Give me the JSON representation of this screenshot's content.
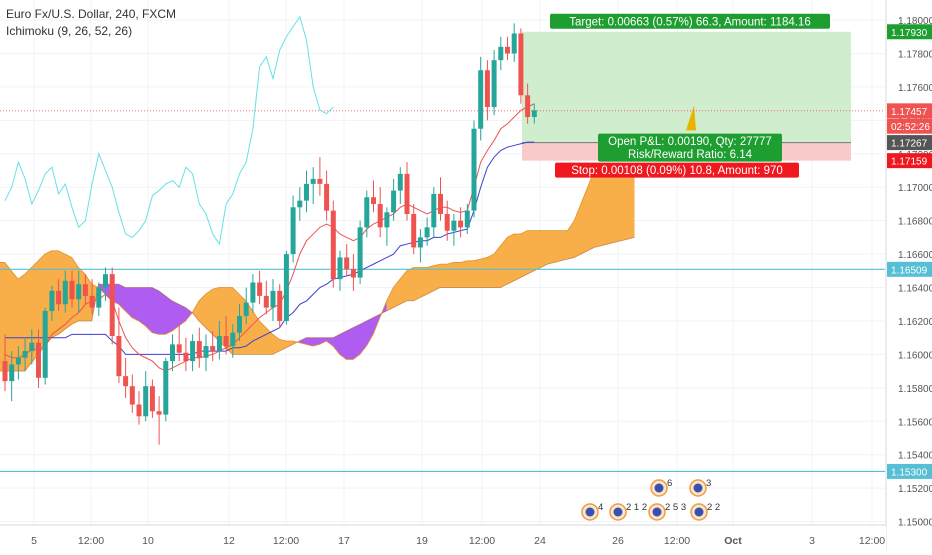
{
  "legend": {
    "symbol_line": "Euro Fx/U.S. Dollar, 240, FXCM",
    "indicator_line": "Ichimoku (9, 26, 52, 26)"
  },
  "colors": {
    "up": "#26a69a",
    "down": "#ef5350",
    "tenkan": "#ef5350",
    "kijun": "#3f3fd1",
    "chikou": "#66e0e8",
    "cloud_bull": "#f7a535",
    "cloud_bear": "#a64af0",
    "hline": "#56bfd6",
    "target_fill": "#c8ebc4",
    "stop_fill": "#f9c4c4",
    "target_label": "#1e9e30",
    "stop_label": "#f0181f"
  },
  "chart_data": {
    "type": "candlestick",
    "instrument": "Euro Fx/U.S. Dollar",
    "timeframe": "240",
    "source": "FXCM",
    "indicator": "Ichimoku (9, 26, 52, 26)",
    "ylim": [
      1.1483,
      1.1812
    ],
    "y_ticks": [
      "1.18000",
      "1.17800",
      "1.17600",
      "1.17400",
      "1.17200",
      "1.17000",
      "1.16800",
      "1.16600",
      "1.16400",
      "1.16200",
      "1.16000",
      "1.15800",
      "1.15600",
      "1.15400",
      "1.15200",
      "1.15000"
    ],
    "x_ticks": [
      "5",
      "12:00",
      "10",
      "12",
      "12:00",
      "17",
      "19",
      "12:00",
      "24",
      "26",
      "12:00",
      "Oct",
      "3",
      "12:00"
    ],
    "price_labels": [
      {
        "text": "1.17930",
        "value": 1.1793,
        "style": "target"
      },
      {
        "text": "1.17457",
        "value": 1.17457,
        "style": "last"
      },
      {
        "text": "02:52:26",
        "value": 1.17365,
        "style": "timer"
      },
      {
        "text": "1.17267",
        "value": 1.17267,
        "style": "entry"
      },
      {
        "text": "1.17159",
        "value": 1.17159,
        "style": "stop"
      },
      {
        "text": "1.16509",
        "value": 1.16509,
        "style": "level"
      },
      {
        "text": "1.15300",
        "value": 1.153,
        "style": "level"
      }
    ],
    "horizontal_levels": [
      1.16509,
      1.153
    ],
    "last_price": 1.17457,
    "position": {
      "entry": 1.17267,
      "target": 1.1793,
      "stop": 1.17159,
      "target_label": "Target: 0.00663 (0.57%) 66.3, Amount: 1184.16",
      "pnl_label": "Open P&L: 0.00190, Qty: 27777",
      "rr_label": "Risk/Reward Ratio: 6.14",
      "stop_label": "Stop: 0.00108 (0.09%) 10.8, Amount: 970"
    },
    "event_markers": [
      {
        "count": "4",
        "x_label": "24"
      },
      {
        "count": "2 1 2",
        "x_label": "26"
      },
      {
        "count": "6",
        "x_label": "26"
      },
      {
        "count": "2 5 3",
        "x_label": "26"
      },
      {
        "count": "3",
        "x_label": "12:00"
      },
      {
        "count": "2 2",
        "x_label": "12:00"
      }
    ],
    "candles": [
      [
        1.1596,
        1.1612,
        1.1578,
        1.1584
      ],
      [
        1.1584,
        1.1602,
        1.1572,
        1.1594
      ],
      [
        1.1594,
        1.1605,
        1.1585,
        1.1598
      ],
      [
        1.1598,
        1.161,
        1.159,
        1.1602
      ],
      [
        1.1602,
        1.1615,
        1.1594,
        1.1607
      ],
      [
        1.1607,
        1.1615,
        1.158,
        1.1586
      ],
      [
        1.1586,
        1.1628,
        1.1582,
        1.1626
      ],
      [
        1.1626,
        1.1641,
        1.162,
        1.1638
      ],
      [
        1.1638,
        1.1645,
        1.1626,
        1.163
      ],
      [
        1.163,
        1.165,
        1.1625,
        1.1644
      ],
      [
        1.1644,
        1.165,
        1.1628,
        1.1633
      ],
      [
        1.1633,
        1.165,
        1.1625,
        1.1642
      ],
      [
        1.1642,
        1.1648,
        1.163,
        1.1635
      ],
      [
        1.1635,
        1.1645,
        1.1624,
        1.1628
      ],
      [
        1.1628,
        1.1643,
        1.1623,
        1.164
      ],
      [
        1.164,
        1.1652,
        1.1632,
        1.1648
      ],
      [
        1.1648,
        1.1652,
        1.1606,
        1.1611
      ],
      [
        1.1611,
        1.1628,
        1.1583,
        1.1587
      ],
      [
        1.1587,
        1.1598,
        1.1574,
        1.1581
      ],
      [
        1.1581,
        1.1588,
        1.1565,
        1.157
      ],
      [
        1.157,
        1.1578,
        1.1558,
        1.1563
      ],
      [
        1.1563,
        1.159,
        1.156,
        1.1581
      ],
      [
        1.1581,
        1.1585,
        1.1562,
        1.1566
      ],
      [
        1.1566,
        1.1575,
        1.1546,
        1.1564
      ],
      [
        1.1564,
        1.1598,
        1.156,
        1.1596
      ],
      [
        1.1596,
        1.1612,
        1.159,
        1.1606
      ],
      [
        1.1606,
        1.1618,
        1.1596,
        1.1601
      ],
      [
        1.1601,
        1.161,
        1.159,
        1.1596
      ],
      [
        1.1596,
        1.1612,
        1.159,
        1.1608
      ],
      [
        1.1608,
        1.1616,
        1.1592,
        1.1598
      ],
      [
        1.1598,
        1.1612,
        1.159,
        1.1605
      ],
      [
        1.1605,
        1.1614,
        1.1596,
        1.1602
      ],
      [
        1.1602,
        1.162,
        1.1597,
        1.1611
      ],
      [
        1.1611,
        1.1623,
        1.16,
        1.1605
      ],
      [
        1.1605,
        1.1618,
        1.1598,
        1.1613
      ],
      [
        1.1613,
        1.163,
        1.1608,
        1.1623
      ],
      [
        1.1623,
        1.164,
        1.1618,
        1.1631
      ],
      [
        1.1631,
        1.1648,
        1.1625,
        1.1643
      ],
      [
        1.1643,
        1.165,
        1.163,
        1.1635
      ],
      [
        1.1635,
        1.1644,
        1.1624,
        1.1628
      ],
      [
        1.1628,
        1.1645,
        1.162,
        1.1638
      ],
      [
        1.1638,
        1.1642,
        1.1616,
        1.162
      ],
      [
        1.162,
        1.1662,
        1.1618,
        1.166
      ],
      [
        1.166,
        1.1695,
        1.1655,
        1.1688
      ],
      [
        1.1688,
        1.17,
        1.168,
        1.1692
      ],
      [
        1.1692,
        1.171,
        1.1685,
        1.1702
      ],
      [
        1.1702,
        1.1712,
        1.169,
        1.1705
      ],
      [
        1.1705,
        1.1718,
        1.1695,
        1.1702
      ],
      [
        1.1702,
        1.171,
        1.168,
        1.1686
      ],
      [
        1.1686,
        1.1692,
        1.164,
        1.1645
      ],
      [
        1.1645,
        1.1662,
        1.1638,
        1.1658
      ],
      [
        1.1658,
        1.1666,
        1.1647,
        1.1651
      ],
      [
        1.1651,
        1.166,
        1.1638,
        1.1646
      ],
      [
        1.1646,
        1.168,
        1.1642,
        1.1676
      ],
      [
        1.1676,
        1.1698,
        1.167,
        1.1694
      ],
      [
        1.1694,
        1.1704,
        1.1685,
        1.169
      ],
      [
        1.169,
        1.17,
        1.167,
        1.1676
      ],
      [
        1.1676,
        1.1688,
        1.1665,
        1.1685
      ],
      [
        1.1685,
        1.1705,
        1.168,
        1.1698
      ],
      [
        1.1698,
        1.1712,
        1.169,
        1.1708
      ],
      [
        1.1708,
        1.1715,
        1.168,
        1.1684
      ],
      [
        1.1684,
        1.169,
        1.166,
        1.1664
      ],
      [
        1.1664,
        1.1675,
        1.1655,
        1.167
      ],
      [
        1.167,
        1.1682,
        1.1665,
        1.1676
      ],
      [
        1.1676,
        1.17,
        1.167,
        1.1696
      ],
      [
        1.1696,
        1.1706,
        1.168,
        1.1684
      ],
      [
        1.1684,
        1.1692,
        1.1668,
        1.1674
      ],
      [
        1.1674,
        1.1684,
        1.1665,
        1.168
      ],
      [
        1.168,
        1.1688,
        1.167,
        1.1676
      ],
      [
        1.1676,
        1.169,
        1.1672,
        1.1686
      ],
      [
        1.1686,
        1.174,
        1.1682,
        1.1735
      ],
      [
        1.1735,
        1.1778,
        1.1728,
        1.177
      ],
      [
        1.177,
        1.1776,
        1.174,
        1.1748
      ],
      [
        1.1748,
        1.1782,
        1.1743,
        1.1776
      ],
      [
        1.1776,
        1.179,
        1.177,
        1.1784
      ],
      [
        1.1784,
        1.179,
        1.1776,
        1.178
      ],
      [
        1.178,
        1.1798,
        1.1775,
        1.1792
      ],
      [
        1.1792,
        1.1795,
        1.175,
        1.1755
      ],
      [
        1.1755,
        1.1762,
        1.1738,
        1.1742
      ],
      [
        1.1742,
        1.175,
        1.1738,
        1.1746
      ]
    ],
    "tenkan": [
      1.16,
      1.1598,
      1.1598,
      1.16,
      1.1603,
      1.1603,
      1.1605,
      1.1612,
      1.1615,
      1.1618,
      1.1622,
      1.1625,
      1.163,
      1.1632,
      1.1633,
      1.1636,
      1.1632,
      1.162,
      1.161,
      1.1604,
      1.16,
      1.1598,
      1.1596,
      1.1592,
      1.159,
      1.1592,
      1.1594,
      1.1596,
      1.1598,
      1.1598,
      1.1599,
      1.16,
      1.1602,
      1.1604,
      1.1606,
      1.161,
      1.1614,
      1.1618,
      1.1622,
      1.1625,
      1.1628,
      1.163,
      1.1638,
      1.1648,
      1.166,
      1.1668,
      1.1672,
      1.1676,
      1.1678,
      1.1676,
      1.1672,
      1.167,
      1.1668,
      1.167,
      1.1675,
      1.1678,
      1.168,
      1.1682,
      1.1684,
      1.1688,
      1.169,
      1.1688,
      1.1686,
      1.1684,
      1.1686,
      1.1688,
      1.1688,
      1.1686,
      1.1685,
      1.1686,
      1.17,
      1.1715,
      1.1722,
      1.1728,
      1.1735,
      1.1738,
      1.1742,
      1.1746,
      1.1748,
      1.175
    ],
    "kijun": [
      1.161,
      1.161,
      1.161,
      1.161,
      1.161,
      1.161,
      1.161,
      1.161,
      1.161,
      1.161,
      1.1612,
      1.1612,
      1.1612,
      1.1612,
      1.1612,
      1.1612,
      1.1608,
      1.1605,
      1.16,
      1.16,
      1.16,
      1.16,
      1.16,
      1.16,
      1.16,
      1.16,
      1.16,
      1.16,
      1.16,
      1.1602,
      1.1602,
      1.1602,
      1.1602,
      1.1602,
      1.1604,
      1.1604,
      1.1605,
      1.1608,
      1.161,
      1.1612,
      1.1614,
      1.1616,
      1.1622,
      1.1625,
      1.163,
      1.1632,
      1.1636,
      1.164,
      1.1642,
      1.1645,
      1.1646,
      1.1647,
      1.1648,
      1.165,
      1.1652,
      1.1654,
      1.1656,
      1.1658,
      1.166,
      1.1665,
      1.1666,
      1.1667,
      1.1668,
      1.1668,
      1.167,
      1.167,
      1.1672,
      1.1673,
      1.1674,
      1.1675,
      1.1686,
      1.17,
      1.1712,
      1.1718,
      1.1722,
      1.1724,
      1.1725,
      1.1726,
      1.1727,
      1.1727
    ],
    "chikou": [
      1.1692,
      1.17,
      1.1715,
      1.1705,
      1.169,
      1.1698,
      1.1708,
      1.1712,
      1.1696,
      1.1702,
      1.1688,
      1.1676,
      1.168,
      1.1702,
      1.172,
      1.171,
      1.17,
      1.1685,
      1.1672,
      1.167,
      1.1674,
      1.168,
      1.1695,
      1.1698,
      1.1702,
      1.1704,
      1.17,
      1.1712,
      1.1708,
      1.169,
      1.1684,
      1.1672,
      1.1666,
      1.169,
      1.1696,
      1.1708,
      1.1715,
      1.1735,
      1.1772,
      1.1778,
      1.1765,
      1.1782,
      1.179,
      1.1796,
      1.1802,
      1.1788,
      1.176,
      1.1746,
      1.1744,
      1.1748
    ],
    "span_a": [
      1.1655,
      1.1655,
      1.165,
      1.1645,
      1.1648,
      1.1652,
      1.1656,
      1.166,
      1.1662,
      1.1662,
      1.166,
      1.1658,
      1.1652,
      1.1648,
      1.1642,
      1.164,
      1.1636,
      1.1632,
      1.163,
      1.1626,
      1.1622,
      1.162,
      1.1617,
      1.1613,
      1.1612,
      1.1612,
      1.1614,
      1.1617,
      1.162,
      1.1625,
      1.1632,
      1.1636,
      1.1639,
      1.164,
      1.164,
      1.164,
      1.1636,
      1.1632,
      1.1626,
      1.162,
      1.1616,
      1.1612,
      1.1609,
      1.1608,
      1.1608,
      1.1607,
      1.1606,
      1.1605,
      1.1606,
      1.1608,
      1.1605,
      1.16,
      1.1597,
      1.1597,
      1.16,
      1.1605,
      1.1612,
      1.1622,
      1.1632,
      1.164,
      1.1645,
      1.165,
      1.1652,
      1.1652,
      1.1652,
      1.1653,
      1.1654,
      1.1654,
      1.1655,
      1.1655,
      1.1656,
      1.1656,
      1.1657,
      1.1658,
      1.166,
      1.1665,
      1.167,
      1.1672,
      1.1672,
      1.1674,
      1.1674,
      1.1674,
      1.1674,
      1.1674,
      1.1674,
      1.1674,
      1.168,
      1.169,
      1.17,
      1.171,
      1.1712,
      1.1712,
      1.1712,
      1.1712,
      1.1712,
      1.1712
    ],
    "span_b": [
      1.159,
      1.159,
      1.159,
      1.159,
      1.159,
      1.1595,
      1.16,
      1.1605,
      1.161,
      1.1612,
      1.1615,
      1.1618,
      1.162,
      1.162,
      1.162,
      1.1642,
      1.1642,
      1.1642,
      1.1642,
      1.164,
      1.164,
      1.164,
      1.164,
      1.164,
      1.1638,
      1.1635,
      1.1632,
      1.163,
      1.1628,
      1.1625,
      1.162,
      1.1616,
      1.1612,
      1.1608,
      1.1604,
      1.16,
      1.16,
      1.16,
      1.16,
      1.16,
      1.16,
      1.16,
      1.1602,
      1.1604,
      1.1606,
      1.1608,
      1.161,
      1.161,
      1.161,
      1.161,
      1.161,
      1.1612,
      1.1614,
      1.1616,
      1.1618,
      1.162,
      1.1622,
      1.1624,
      1.1626,
      1.1628,
      1.163,
      1.1632,
      1.1632,
      1.1634,
      1.1636,
      1.1638,
      1.164,
      1.164,
      1.164,
      1.164,
      1.164,
      1.164,
      1.164,
      1.164,
      1.164,
      1.164,
      1.1642,
      1.1644,
      1.1646,
      1.1648,
      1.165,
      1.1652,
      1.1654,
      1.1655,
      1.1656,
      1.1657,
      1.1658,
      1.166,
      1.1662,
      1.1664,
      1.1665,
      1.1666,
      1.1667,
      1.1668,
      1.1669,
      1.167
    ]
  }
}
